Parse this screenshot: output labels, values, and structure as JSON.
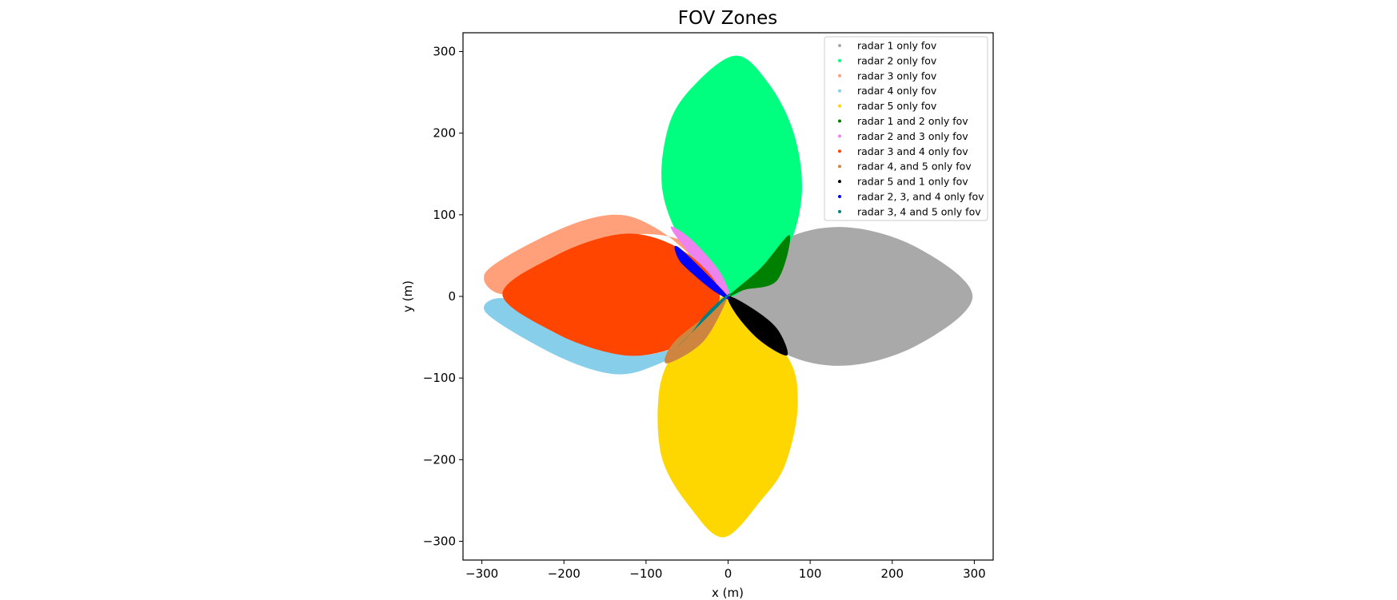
{
  "chart_data": {
    "type": "scatter",
    "title": "FOV Zones",
    "xlabel": "x (m)",
    "ylabel": "y (m)",
    "xlim": [
      -323,
      323
    ],
    "ylim": [
      -323,
      323
    ],
    "xticks": [
      -300,
      -200,
      -100,
      0,
      100,
      200,
      300
    ],
    "yticks": [
      -300,
      -200,
      -100,
      0,
      100,
      200,
      300
    ],
    "xtick_labels": [
      "−300",
      "−200",
      "−100",
      "0",
      "100",
      "200",
      "300"
    ],
    "ytick_labels": [
      "−300",
      "−200",
      "−100",
      "0",
      "100",
      "200",
      "300"
    ],
    "grid": false,
    "legend_position": "upper right",
    "series": [
      {
        "name": "radar 1 only fov",
        "color": "#a9a9a9",
        "region": [
          [
            0,
            0
          ],
          [
            60,
            65
          ],
          [
            140,
            85
          ],
          [
            230,
            60
          ],
          [
            298,
            0
          ],
          [
            230,
            -60
          ],
          [
            140,
            -85
          ],
          [
            60,
            -65
          ]
        ]
      },
      {
        "name": "radar 2 only fov",
        "color": "#00ff7f",
        "region": [
          [
            0,
            0
          ],
          [
            -50,
            55
          ],
          [
            -80,
            130
          ],
          [
            -72,
            210
          ],
          [
            -40,
            260
          ],
          [
            10,
            295
          ],
          [
            50,
            260
          ],
          [
            80,
            200
          ],
          [
            90,
            130
          ],
          [
            75,
            65
          ],
          [
            40,
            35
          ]
        ]
      },
      {
        "name": "radar 3 only fov",
        "color": "#ffa07a",
        "region": [
          [
            0,
            0
          ],
          [
            -40,
            45
          ],
          [
            -90,
            85
          ],
          [
            -140,
            100
          ],
          [
            -210,
            80
          ],
          [
            -295,
            30
          ],
          [
            -270,
            3
          ],
          [
            -210,
            50
          ],
          [
            -125,
            75
          ],
          [
            -60,
            70
          ],
          [
            -25,
            40
          ]
        ]
      },
      {
        "name": "radar 4 only fov",
        "color": "#87ceeb",
        "region": [
          [
            0,
            0
          ],
          [
            -40,
            -55
          ],
          [
            -90,
            -85
          ],
          [
            -140,
            -95
          ],
          [
            -210,
            -72
          ],
          [
            -295,
            -20
          ],
          [
            -270,
            -3
          ],
          [
            -210,
            -45
          ],
          [
            -125,
            -72
          ],
          [
            -60,
            -62
          ],
          [
            -25,
            -40
          ]
        ]
      },
      {
        "name": "radar 5 only fov",
        "color": "#ffd700",
        "region": [
          [
            0,
            0
          ],
          [
            70,
            -70
          ],
          [
            85,
            -130
          ],
          [
            70,
            -205
          ],
          [
            40,
            -250
          ],
          [
            -5,
            -295
          ],
          [
            -45,
            -260
          ],
          [
            -80,
            -200
          ],
          [
            -85,
            -125
          ],
          [
            -70,
            -75
          ],
          [
            -35,
            -40
          ]
        ]
      },
      {
        "name": "radar 1 and 2 only fov",
        "color": "#008000",
        "region": [
          [
            0,
            0
          ],
          [
            40,
            35
          ],
          [
            75,
            75
          ],
          [
            60,
            20
          ],
          [
            20,
            8
          ]
        ]
      },
      {
        "name": "radar 2 and 3 only fov",
        "color": "#ee82ee",
        "region": [
          [
            0,
            0
          ],
          [
            -45,
            50
          ],
          [
            -70,
            85
          ],
          [
            -45,
            70
          ],
          [
            -10,
            30
          ]
        ]
      },
      {
        "name": "radar 3 and 4 only fov",
        "color": "#ff4500",
        "region": [
          [
            -10,
            0
          ],
          [
            -40,
            45
          ],
          [
            -90,
            72
          ],
          [
            -140,
            75
          ],
          [
            -210,
            50
          ],
          [
            -275,
            3
          ],
          [
            -210,
            -45
          ],
          [
            -140,
            -70
          ],
          [
            -90,
            -70
          ],
          [
            -45,
            -50
          ]
        ]
      },
      {
        "name": "radar 4, and 5 only fov",
        "color": "#cd853f",
        "region": [
          [
            0,
            0
          ],
          [
            -30,
            -55
          ],
          [
            -75,
            -82
          ],
          [
            -65,
            -55
          ],
          [
            -15,
            -15
          ]
        ]
      },
      {
        "name": "radar 5 and 1 only fov",
        "color": "#000000",
        "region": [
          [
            0,
            0
          ],
          [
            30,
            -15
          ],
          [
            60,
            -40
          ],
          [
            72,
            -72
          ],
          [
            40,
            -55
          ],
          [
            12,
            -25
          ]
        ]
      },
      {
        "name": "radar 2, 3, and 4 only fov",
        "color": "#0000ff",
        "region": [
          [
            0,
            0
          ],
          [
            -60,
            60
          ],
          [
            -60,
            45
          ],
          [
            -40,
            25
          ],
          [
            -15,
            5
          ]
        ]
      },
      {
        "name": "radar 3, 4 and 5 only fov",
        "color": "#008080",
        "region": [
          [
            0,
            0
          ],
          [
            -60,
            -60
          ],
          [
            -45,
            -45
          ],
          [
            -30,
            -25
          ],
          [
            -10,
            -5
          ]
        ]
      }
    ]
  }
}
